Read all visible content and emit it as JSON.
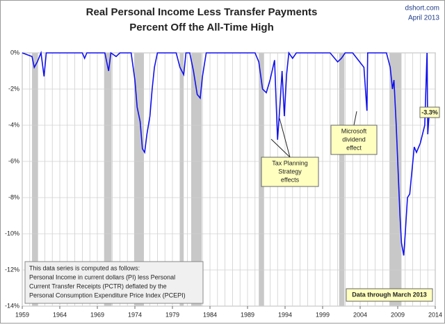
{
  "chart_data": {
    "type": "line",
    "title": [
      "Real Personal Income Less Transfer Payments",
      "Percent Off the All-Time High"
    ],
    "source": "dshort.com",
    "date": "April 2013",
    "x": [
      1959,
      1960.3,
      1960.6,
      1961.0,
      1961.5,
      1961.9,
      1962.2,
      1963,
      1967,
      1967.3,
      1967.6,
      1970.0,
      1970.5,
      1970.8,
      1971.5,
      1972,
      1973.5,
      1974.0,
      1974.3,
      1974.7,
      1975.0,
      1975.3,
      1975.6,
      1976,
      1976.3,
      1976.6,
      1977,
      1979.5,
      1980,
      1980.5,
      1980.8,
      1981.3,
      1981.8,
      1982.3,
      1982.7,
      1983,
      1983.5,
      1990,
      1990.5,
      1991,
      1991.5,
      1992,
      1992.6,
      1993.0,
      1993.3,
      1993.6,
      1993.9,
      1994.2,
      1994.5,
      1995,
      1995.5,
      2000,
      2001,
      2001.5,
      2002,
      2003,
      2004.5,
      2004.9,
      2005.0,
      2006,
      2007.5,
      2008,
      2008.3,
      2008.5,
      2008.8,
      2009.0,
      2009.3,
      2009.5,
      2009.8,
      2010,
      2010.3,
      2010.6,
      2010.9,
      2011.2,
      2011.5,
      2011.8,
      2012.0,
      2012.3,
      2012.6,
      2012.9,
      2013.0,
      2013.2
    ],
    "series": [
      {
        "color": "#1010f0",
        "values": [
          0,
          -0.2,
          -0.8,
          -0.5,
          0,
          -1.3,
          0,
          0,
          0,
          -0.3,
          0,
          0,
          -1.0,
          0,
          -0.2,
          0,
          0,
          -1.5,
          -3.0,
          -3.8,
          -5.3,
          -5.5,
          -4.5,
          -3.5,
          -2.0,
          -0.8,
          0,
          0,
          -0.8,
          -1.2,
          0,
          0,
          -1.0,
          -2.3,
          -2.5,
          -1.3,
          0,
          0,
          -0.5,
          -2.0,
          -2.2,
          -1.5,
          -0.4,
          -4.8,
          -3.0,
          -1.0,
          -3.5,
          -1.2,
          0,
          -0.3,
          0,
          0,
          -0.5,
          -0.3,
          0,
          0,
          -0.8,
          -3.2,
          0,
          0,
          0,
          -0.8,
          -2.0,
          -1.5,
          -4.0,
          -6.0,
          -9.0,
          -10.5,
          -11.2,
          -10.0,
          -8.0,
          -7.8,
          -6.5,
          -5.2,
          -5.5,
          -5.2,
          -5.0,
          -4.5,
          -4.0,
          0,
          -4.5,
          -3.3
        ]
      }
    ],
    "recessions": [
      [
        1960.3,
        1961.1
      ],
      [
        1969.9,
        1970.9
      ],
      [
        1973.9,
        1975.2
      ],
      [
        1980.0,
        1980.5
      ],
      [
        1981.5,
        1982.9
      ],
      [
        1990.5,
        1991.2
      ],
      [
        2001.2,
        2001.9
      ],
      [
        2007.9,
        2009.5
      ]
    ],
    "xlim": [
      1959,
      2014
    ],
    "xticks": [
      1959,
      1964,
      1969,
      1974,
      1979,
      1984,
      1989,
      1994,
      1999,
      2004,
      2009,
      2014
    ],
    "ylim": [
      -14,
      0
    ],
    "yticks": [
      {
        "value": 0,
        "label": "0%"
      },
      {
        "value": -2,
        "label": "-2%"
      },
      {
        "value": -4,
        "label": "-4%"
      },
      {
        "value": -6,
        "label": "-6%"
      },
      {
        "value": -8,
        "label": "-8%"
      },
      {
        "value": -10,
        "label": "-10%"
      },
      {
        "value": -12,
        "label": "-12%"
      },
      {
        "value": -14,
        "label": "-14%"
      }
    ],
    "last_label": "-3.3%",
    "annotations": [
      [
        "Tax Planning",
        "Strategy",
        "effects"
      ],
      [
        "Microsoft",
        "dividend",
        "effect"
      ]
    ],
    "note": [
      "This data series is computed as follows:",
      "Personal Income in current dollars  (PI) less Personal",
      "Current Transfer Receipts (PCTR) deflated by the",
      "Personal Consumption Expenditure Price Index (PCEPI)"
    ],
    "data_through": "Data through March 2013"
  }
}
